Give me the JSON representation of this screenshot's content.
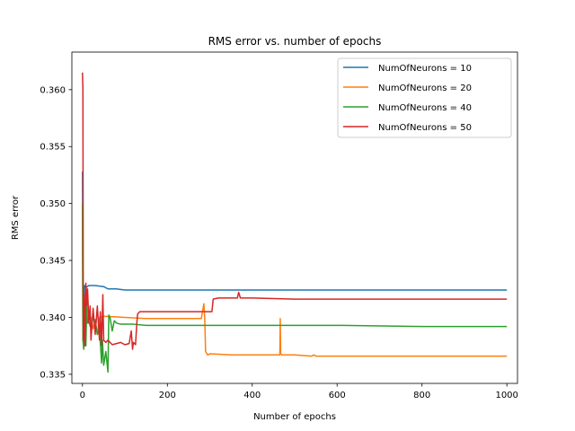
{
  "chart_data": {
    "type": "line",
    "title": "RMS error vs. number of epochs",
    "xlabel": "Number of epochs",
    "ylabel": "RMS error",
    "xlim": [
      -25,
      1025
    ],
    "ylim": [
      0.3342,
      0.3633
    ],
    "xticks": [
      0,
      200,
      400,
      600,
      800,
      1000
    ],
    "xtick_labels": [
      "0",
      "200",
      "400",
      "600",
      "800",
      "1000"
    ],
    "yticks": [
      0.335,
      0.34,
      0.345,
      0.35,
      0.355,
      0.36
    ],
    "ytick_labels": [
      "0.335",
      "0.340",
      "0.345",
      "0.350",
      "0.355",
      "0.360"
    ],
    "grid": false,
    "legend_position": "top-right",
    "series": [
      {
        "name": "NumOfNeurons = 10",
        "color": "#1f77b4",
        "points": [
          [
            0,
            0.3528
          ],
          [
            1,
            0.3434
          ],
          [
            3,
            0.3386
          ],
          [
            5,
            0.3428
          ],
          [
            8,
            0.3426
          ],
          [
            15,
            0.3428
          ],
          [
            30,
            0.3428
          ],
          [
            50,
            0.3427
          ],
          [
            60,
            0.3425
          ],
          [
            80,
            0.3425
          ],
          [
            100,
            0.3424
          ],
          [
            150,
            0.3424
          ],
          [
            200,
            0.3424
          ],
          [
            400,
            0.3424
          ],
          [
            600,
            0.3424
          ],
          [
            800,
            0.3424
          ],
          [
            1000,
            0.3424
          ]
        ]
      },
      {
        "name": "NumOfNeurons = 20",
        "color": "#ff7f0e",
        "points": [
          [
            0,
            0.349
          ],
          [
            1,
            0.338
          ],
          [
            3,
            0.3378
          ],
          [
            5,
            0.34
          ],
          [
            10,
            0.3395
          ],
          [
            15,
            0.34
          ],
          [
            20,
            0.34
          ],
          [
            25,
            0.339
          ],
          [
            30,
            0.3398
          ],
          [
            35,
            0.3385
          ],
          [
            40,
            0.34
          ],
          [
            50,
            0.3401
          ],
          [
            100,
            0.34
          ],
          [
            150,
            0.3399
          ],
          [
            200,
            0.3399
          ],
          [
            280,
            0.3399
          ],
          [
            286,
            0.3412
          ],
          [
            288,
            0.34
          ],
          [
            290,
            0.337
          ],
          [
            295,
            0.3367
          ],
          [
            300,
            0.3368
          ],
          [
            350,
            0.3367
          ],
          [
            400,
            0.3367
          ],
          [
            460,
            0.3367
          ],
          [
            465,
            0.3367
          ],
          [
            466,
            0.3399
          ],
          [
            467,
            0.3368
          ],
          [
            470,
            0.3367
          ],
          [
            500,
            0.3367
          ],
          [
            540,
            0.3366
          ],
          [
            545,
            0.3367
          ],
          [
            550,
            0.3366
          ],
          [
            600,
            0.3366
          ],
          [
            800,
            0.3366
          ],
          [
            1000,
            0.3366
          ]
        ]
      },
      {
        "name": "NumOfNeurons = 40",
        "color": "#2ca02c",
        "points": [
          [
            0,
            0.35
          ],
          [
            1,
            0.338
          ],
          [
            3,
            0.3372
          ],
          [
            5,
            0.34
          ],
          [
            8,
            0.3375
          ],
          [
            10,
            0.341
          ],
          [
            12,
            0.3395
          ],
          [
            15,
            0.3396
          ],
          [
            20,
            0.339
          ],
          [
            25,
            0.34
          ],
          [
            30,
            0.3397
          ],
          [
            35,
            0.3385
          ],
          [
            40,
            0.339
          ],
          [
            45,
            0.336
          ],
          [
            47,
            0.338
          ],
          [
            50,
            0.3358
          ],
          [
            55,
            0.337
          ],
          [
            60,
            0.3352
          ],
          [
            62,
            0.3402
          ],
          [
            65,
            0.34
          ],
          [
            70,
            0.3388
          ],
          [
            75,
            0.3397
          ],
          [
            80,
            0.3395
          ],
          [
            90,
            0.3394
          ],
          [
            100,
            0.3394
          ],
          [
            120,
            0.3394
          ],
          [
            150,
            0.3393
          ],
          [
            200,
            0.3393
          ],
          [
            300,
            0.3393
          ],
          [
            400,
            0.3393
          ],
          [
            600,
            0.3393
          ],
          [
            800,
            0.3392
          ],
          [
            1000,
            0.3392
          ]
        ]
      },
      {
        "name": "NumOfNeurons = 50",
        "color": "#d62728",
        "points": [
          [
            0,
            0.3615
          ],
          [
            1,
            0.36
          ],
          [
            2,
            0.338
          ],
          [
            4,
            0.342
          ],
          [
            6,
            0.3375
          ],
          [
            8,
            0.343
          ],
          [
            10,
            0.341
          ],
          [
            12,
            0.3425
          ],
          [
            15,
            0.3395
          ],
          [
            18,
            0.341
          ],
          [
            20,
            0.338
          ],
          [
            25,
            0.3408
          ],
          [
            30,
            0.3385
          ],
          [
            35,
            0.341
          ],
          [
            40,
            0.338
          ],
          [
            42,
            0.3405
          ],
          [
            45,
            0.3375
          ],
          [
            48,
            0.342
          ],
          [
            50,
            0.338
          ],
          [
            55,
            0.3378
          ],
          [
            60,
            0.338
          ],
          [
            70,
            0.3376
          ],
          [
            80,
            0.3377
          ],
          [
            90,
            0.3378
          ],
          [
            100,
            0.3376
          ],
          [
            110,
            0.3377
          ],
          [
            115,
            0.3388
          ],
          [
            118,
            0.3372
          ],
          [
            120,
            0.3378
          ],
          [
            125,
            0.3376
          ],
          [
            128,
            0.3395
          ],
          [
            130,
            0.3403
          ],
          [
            135,
            0.3405
          ],
          [
            150,
            0.3405
          ],
          [
            200,
            0.3405
          ],
          [
            250,
            0.3405
          ],
          [
            300,
            0.3405
          ],
          [
            305,
            0.3405
          ],
          [
            308,
            0.3416
          ],
          [
            320,
            0.3417
          ],
          [
            350,
            0.3417
          ],
          [
            365,
            0.3417
          ],
          [
            368,
            0.3422
          ],
          [
            372,
            0.3417
          ],
          [
            400,
            0.3417
          ],
          [
            500,
            0.3416
          ],
          [
            600,
            0.3416
          ],
          [
            800,
            0.3416
          ],
          [
            1000,
            0.3416
          ]
        ]
      }
    ]
  }
}
